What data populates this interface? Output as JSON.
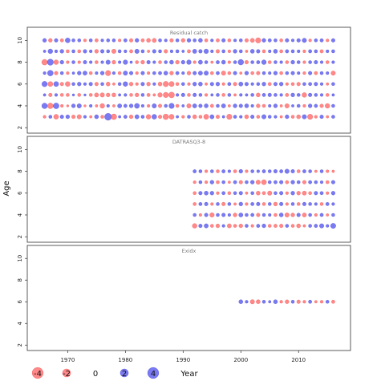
{
  "chart_data": {
    "type": "scatter",
    "subtype": "bubble-residuals",
    "ylabel": "Age",
    "xlabel": "Year",
    "xlim": [
      1963,
      2019
    ],
    "x_ticks": [
      1970,
      1980,
      1990,
      2000,
      2010
    ],
    "y_ticks": [
      2,
      4,
      6,
      8,
      10
    ],
    "colors": {
      "positive": "#5555ee",
      "negative": "#ff6666",
      "stroke_positive": "#2222cc",
      "stroke_negative": "#ee3333"
    },
    "legend": {
      "entries": [
        {
          "label": "-4",
          "value": -4
        },
        {
          "label": "-2",
          "value": -2
        },
        {
          "label": "0",
          "value": 0
        },
        {
          "label": "2",
          "value": 2
        },
        {
          "label": "4",
          "value": 4
        }
      ],
      "placement": "bottom-left"
    },
    "panels": [
      {
        "title": "Residual catch",
        "ylim": [
          1.5,
          11.2
        ],
        "ages": [
          3,
          4,
          5,
          6,
          7,
          8,
          9,
          10
        ],
        "years": [
          1966,
          2016
        ],
        "residuals": [
          [
            -0.5,
            0.6,
            -1.5,
            0.8,
            0.9,
            -0.8,
            -1.2,
            0.5,
            -0.4,
            1.0,
            -0.6,
            3.2,
            -2.1,
            0.4,
            0.7,
            -0.9,
            1.1,
            0.6,
            -1.4,
            1.5,
            -0.8,
            -2.0,
            -1.6,
            0.4,
            -0.5,
            0.6,
            -1.0,
            -0.6,
            -1.6,
            1.1,
            -0.8,
            0.4,
            -1.8,
            0.6,
            0.5,
            -1.0,
            0.8,
            -0.6,
            1.2,
            0.6,
            0.5,
            -0.4,
            0.9,
            -0.6,
            -1.0,
            1.2,
            -1.8,
            -0.5,
            0.8,
            -0.4,
            0.6
          ],
          [
            2.0,
            -2.1,
            2.2,
            -0.5,
            -0.3,
            0.9,
            1.2,
            -0.3,
            0.5,
            -0.4,
            -1.4,
            0.5,
            -0.4,
            1.1,
            0.7,
            0.9,
            1.6,
            0.5,
            -0.5,
            1.2,
            -0.8,
            0.6,
            1.8,
            -0.6,
            0.4,
            -1.2,
            1.1,
            0.8,
            1.0,
            -0.7,
            0.6,
            1.1,
            -0.4,
            0.9,
            0.8,
            1.0,
            0.5,
            -0.9,
            -0.6,
            0.5,
            0.9,
            -0.4,
            -1.2,
            0.4,
            0.6,
            -0.5,
            0.9,
            0.7,
            -0.8,
            -1.4,
            0.6
          ],
          [
            0.4,
            -0.8,
            0.5,
            -0.6,
            -0.6,
            0.3,
            -0.6,
            0.3,
            -0.6,
            -1.1,
            -1.2,
            -0.9,
            -1.0,
            0.4,
            0.5,
            -0.6,
            -0.9,
            0.6,
            -0.7,
            -0.4,
            -1.3,
            -1.8,
            -2.2,
            0.5,
            0.8,
            -0.6,
            0.8,
            0.6,
            -0.5,
            0.4,
            0.6,
            -0.6,
            0.6,
            -0.4,
            0.5,
            0.4,
            0.6,
            -1.0,
            0.7,
            0.8,
            0.6,
            0.5,
            -0.7,
            0.9,
            0.6,
            -1.4,
            0.8,
            0.6,
            0.5,
            -0.6,
            0.4
          ],
          [
            1.9,
            -1.6,
            1.6,
            -0.8,
            -1.5,
            0.6,
            0.9,
            0.5,
            0.8,
            -0.8,
            0.6,
            -1.0,
            -0.4,
            0.6,
            1.4,
            -0.9,
            -0.5,
            0.8,
            -0.9,
            0.5,
            -1.0,
            -1.9,
            -1.7,
            -0.6,
            0.6,
            -0.5,
            0.9,
            1.0,
            -0.4,
            0.8,
            0.9,
            -0.5,
            0.7,
            -0.8,
            1.1,
            0.8,
            0.5,
            0.6,
            0.9,
            -0.7,
            0.8,
            0.9,
            -0.5,
            -0.6,
            -0.8,
            0.6,
            0.7,
            0.8,
            0.5,
            -0.4,
            0.6
          ],
          [
            0.5,
            2.1,
            -0.8,
            0.6,
            -0.5,
            0.4,
            0.9,
            1.1,
            -0.6,
            0.5,
            0.9,
            -1.8,
            0.5,
            -0.6,
            1.2,
            0.8,
            -0.5,
            0.8,
            -0.5,
            0.6,
            0.7,
            1.0,
            -0.9,
            0.7,
            0.5,
            -0.9,
            0.8,
            1.1,
            1.2,
            -0.6,
            0.7,
            -1.2,
            -0.6,
            0.8,
            -0.4,
            0.9,
            -0.6,
            -0.8,
            0.6,
            0.5,
            0.9,
            -0.6,
            0.6,
            0.8,
            0.5,
            -0.5,
            0.8,
            -0.7,
            0.6,
            0.5,
            -1.2
          ],
          [
            -2.1,
            2.5,
            -1.4,
            0.9,
            -0.5,
            0.6,
            -0.5,
            0.8,
            0.5,
            -0.6,
            0.5,
            1.2,
            -0.9,
            0.5,
            1.3,
            0.4,
            -0.6,
            -0.9,
            0.8,
            0.5,
            -0.6,
            0.6,
            1.0,
            -0.9,
            0.9,
            1.3,
            -0.5,
            1.1,
            0.6,
            -0.4,
            0.7,
            1.0,
            -0.5,
            0.6,
            2.0,
            -0.8,
            0.6,
            0.7,
            1.4,
            -0.6,
            0.6,
            0.5,
            -0.6,
            0.9,
            0.6,
            -0.5,
            0.6,
            0.8,
            0.5,
            -0.6,
            0.5
          ],
          [
            0.4,
            1.4,
            0.5,
            0.9,
            -0.6,
            0.6,
            -0.6,
            0.8,
            0.5,
            -0.9,
            0.8,
            0.6,
            -1.2,
            0.6,
            0.5,
            -0.7,
            1.2,
            0.6,
            -0.4,
            0.8,
            0.6,
            -0.8,
            0.5,
            0.6,
            0.4,
            -0.7,
            1.1,
            0.8,
            1.3,
            0.5,
            -0.8,
            0.6,
            -0.5,
            0.9,
            0.6,
            -0.4,
            1.0,
            0.8,
            -0.6,
            0.5,
            1.0,
            -0.6,
            0.7,
            0.6,
            0.5,
            -0.5,
            0.7,
            0.6,
            -0.7,
            0.5,
            0.6
          ],
          [
            0.9,
            -0.9,
            0.8,
            -0.7,
            1.5,
            0.6,
            0.6,
            -0.5,
            0.6,
            -0.7,
            0.5,
            0.6,
            0.6,
            -0.5,
            0.7,
            -0.8,
            0.9,
            -0.7,
            -1.0,
            -1.1,
            0.6,
            0.5,
            -0.8,
            0.6,
            -0.9,
            0.9,
            0.6,
            1.0,
            -0.6,
            0.5,
            -0.7,
            0.8,
            -0.6,
            0.5,
            0.6,
            -0.8,
            -1.1,
            -1.8,
            0.9,
            0.7,
            0.6,
            -0.6,
            0.8,
            0.5,
            0.8,
            1.2,
            -0.5,
            0.6,
            0.7,
            -0.5,
            0.8
          ]
        ]
      },
      {
        "title": "DATRASQ3-8",
        "ylim": [
          1.5,
          11.2
        ],
        "ages": [
          3,
          4,
          5,
          6,
          7,
          8
        ],
        "years": [
          1992,
          2016
        ],
        "residuals": [
          [
            -1.4,
            0.8,
            1.1,
            -0.6,
            -0.9,
            0.5,
            -1.1,
            -0.6,
            -0.9,
            0.6,
            -0.5,
            0.7,
            0.9,
            -0.6,
            -0.7,
            -0.8,
            0.6,
            -0.6,
            -1.0,
            -0.4,
            0.6,
            0.7,
            1.2,
            0.5,
            1.7
          ],
          [
            0.6,
            -0.5,
            0.8,
            -1.3,
            0.6,
            0.8,
            0.5,
            -0.9,
            1.1,
            0.6,
            0.7,
            -0.8,
            0.6,
            0.5,
            -0.6,
            1.0,
            -1.2,
            -0.9,
            0.8,
            -1.1,
            0.6,
            -0.5,
            0.7,
            -0.4,
            0.6
          ],
          [
            -0.6,
            0.7,
            0.8,
            -0.5,
            0.6,
            -0.8,
            0.6,
            -0.4,
            0.9,
            -0.5,
            0.7,
            0.8,
            -0.6,
            0.6,
            -0.9,
            0.8,
            -0.5,
            0.6,
            -0.6,
            0.8,
            0.6,
            0.5,
            -0.6,
            0.7,
            0.5
          ],
          [
            -0.6,
            0.8,
            1.0,
            0.9,
            -0.5,
            0.7,
            -0.6,
            0.6,
            0.8,
            -0.4,
            0.6,
            -1.0,
            -0.7,
            -1.2,
            0.6,
            0.8,
            -0.5,
            0.9,
            -0.9,
            -1.1,
            -0.6,
            0.8,
            0.7,
            -0.5,
            0.9
          ],
          [
            -0.5,
            0.6,
            -0.5,
            0.9,
            -0.6,
            0.6,
            -0.4,
            0.7,
            -0.8,
            0.6,
            0.9,
            -1.2,
            -1.6,
            0.6,
            0.7,
            0.8,
            -0.7,
            0.9,
            0.6,
            -0.8,
            0.7,
            0.6,
            0.5,
            -0.6,
            0.8
          ],
          [
            0.7,
            0.6,
            -0.5,
            0.6,
            -0.6,
            0.7,
            0.5,
            -0.6,
            0.9,
            -0.5,
            0.6,
            0.5,
            0.7,
            0.6,
            0.8,
            0.7,
            1.2,
            0.8,
            -0.6,
            0.7,
            0.6,
            -0.4,
            0.6,
            -0.5,
            -0.4
          ]
        ]
      },
      {
        "title": "Exidx",
        "ylim": [
          1.5,
          11.2
        ],
        "ages": [
          6
        ],
        "years": [
          2000,
          2016
        ],
        "residuals": [
          [
            1.0,
            0.5,
            -1.2,
            -1.0,
            0.6,
            0.4,
            1.0,
            -0.5,
            -0.9,
            0.6,
            -0.8,
            -0.5,
            0.7,
            -0.4,
            -0.5,
            0.6,
            -0.7
          ]
        ]
      }
    ]
  }
}
